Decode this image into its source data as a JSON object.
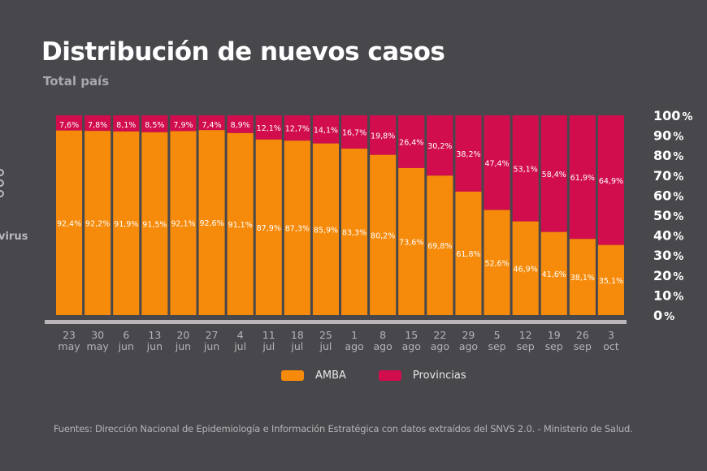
{
  "page": {
    "title": "Distribución de nuevos casos",
    "subtitle": "Total país",
    "side_fragment": "virus",
    "source": "Fuentes: Dirección Nacional de Epidemiología e Información Estratégica con datos extraídos del SNVS 2.0. - Ministerio de Salud."
  },
  "colors": {
    "background": "#48484c",
    "amba": "#f68a0a",
    "provincias": "#d10d4e",
    "axis": "#b9b5b9"
  },
  "chart_data": {
    "type": "bar",
    "stacked": true,
    "percent": true,
    "title": "Distribución de nuevos casos",
    "subtitle": "Total país",
    "xlabel": "",
    "ylabel": "",
    "ylim": [
      0,
      100
    ],
    "yticks": [
      "0",
      "10",
      "20",
      "30",
      "40",
      "50",
      "60",
      "70",
      "80",
      "90",
      "100"
    ],
    "ytick_suffix": "%",
    "categories": [
      {
        "day": "23",
        "month": "may"
      },
      {
        "day": "30",
        "month": "may"
      },
      {
        "day": "6",
        "month": "jun"
      },
      {
        "day": "13",
        "month": "jun"
      },
      {
        "day": "20",
        "month": "jun"
      },
      {
        "day": "27",
        "month": "jun"
      },
      {
        "day": "4",
        "month": "jul"
      },
      {
        "day": "11",
        "month": "jul"
      },
      {
        "day": "18",
        "month": "jul"
      },
      {
        "day": "25",
        "month": "jul"
      },
      {
        "day": "1",
        "month": "ago"
      },
      {
        "day": "8",
        "month": "ago"
      },
      {
        "day": "15",
        "month": "ago"
      },
      {
        "day": "22",
        "month": "ago"
      },
      {
        "day": "29",
        "month": "ago"
      },
      {
        "day": "5",
        "month": "sep"
      },
      {
        "day": "12",
        "month": "sep"
      },
      {
        "day": "19",
        "month": "sep"
      },
      {
        "day": "26",
        "month": "sep"
      },
      {
        "day": "3",
        "month": "oct"
      }
    ],
    "series": [
      {
        "name": "AMBA",
        "color": "#f68a0a",
        "values": [
          92.4,
          92.2,
          91.9,
          91.5,
          92.1,
          92.6,
          91.1,
          87.9,
          87.3,
          85.9,
          83.3,
          80.2,
          73.6,
          69.8,
          61.8,
          52.6,
          46.9,
          41.6,
          38.1,
          35.1
        ],
        "labels": [
          "92,4%",
          "92,2%",
          "91,9%",
          "91,5%",
          "92,1%",
          "92,6%",
          "91,1%",
          "87,9%",
          "87,3%",
          "85,9%",
          "83,3%",
          "80,2%",
          "73,6%",
          "69,8%",
          "61,8%",
          "52,6%",
          "46,9%",
          "41,6%",
          "38,1%",
          "35,1%"
        ]
      },
      {
        "name": "Provincias",
        "color": "#d10d4e",
        "values": [
          7.6,
          7.8,
          8.1,
          8.5,
          7.9,
          7.4,
          8.9,
          12.1,
          12.7,
          14.1,
          16.7,
          19.8,
          26.4,
          30.2,
          38.2,
          47.4,
          53.1,
          58.4,
          61.9,
          64.9
        ],
        "labels": [
          "7,6%",
          "7,8%",
          "8,1%",
          "8,5%",
          "7,9%",
          "7,4%",
          "8,9%",
          "12,1%",
          "12,7%",
          "14,1%",
          "16,7%",
          "19,8%",
          "26,4%",
          "30,2%",
          "38,2%",
          "47,4%",
          "53,1%",
          "58,4%",
          "61,9%",
          "64,9%"
        ]
      }
    ],
    "legend": [
      "AMBA",
      "Provincias"
    ],
    "legend_position": "bottom",
    "grid": false
  },
  "legend": {
    "amba_label": "AMBA",
    "provincias_label": "Provincias"
  }
}
